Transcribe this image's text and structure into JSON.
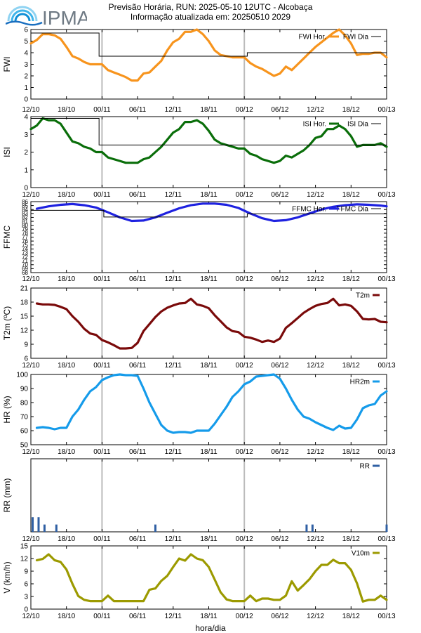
{
  "header": {
    "logo_text": "IPMA",
    "title": "Previsão Horária, RUN: 2025-05-10 12UTC - Alcobaça",
    "subtitle": "Informação atualizada em: 20250510 2029"
  },
  "xlabel": "hora/dia",
  "time_labels": [
    "12/10",
    "18/10",
    "00/11",
    "06/11",
    "12/11",
    "18/11",
    "00/12",
    "06/12",
    "12/12",
    "18/12",
    "00/13"
  ],
  "colors": {
    "fwi": "#f7941d",
    "isi": "#0a6e0a",
    "ffmc": "#1f22e0",
    "t2m": "#7a0a0a",
    "hr": "#159bea",
    "rr": "#2f5fa3",
    "v10m": "#9c9a00",
    "daily": "#000000",
    "midnight": "#bbbbbb"
  },
  "chart_data": [
    {
      "id": "fwi",
      "type": "line",
      "ylabel": "FWI",
      "ylim": [
        0,
        6
      ],
      "yticks": [
        "0",
        "1",
        "2",
        "3",
        "4",
        "5",
        "6"
      ],
      "legend": [
        "FWI Hor.",
        "FWI Dia"
      ],
      "legend_position": "top-right",
      "x": [
        0,
        1,
        2,
        3,
        4,
        5,
        6,
        7,
        8,
        9,
        10,
        11,
        12,
        13,
        14,
        15,
        16,
        17,
        18,
        19,
        20,
        21,
        22,
        23,
        24,
        25,
        26,
        27,
        28,
        29,
        30,
        31,
        32,
        33,
        34,
        35,
        36,
        37,
        38,
        39,
        40,
        41,
        42,
        43,
        44,
        45,
        46,
        47,
        48,
        49,
        50,
        51,
        52,
        53,
        54,
        55,
        56,
        57,
        58,
        59,
        60
      ],
      "series": [
        {
          "values": [
            4.8,
            5.1,
            5.6,
            5.6,
            5.5,
            5.2,
            4.5,
            3.7,
            3.5,
            3.2,
            3.0,
            3.0,
            3.0,
            2.5,
            2.3,
            2.1,
            1.9,
            1.6,
            1.6,
            2.2,
            2.3,
            2.8,
            3.3,
            4.2,
            4.9,
            5.2,
            5.8,
            5.8,
            6.0,
            5.6,
            5.0,
            4.2,
            3.8,
            3.7,
            3.6,
            3.6,
            3.6,
            3.1,
            2.8,
            2.6,
            2.3,
            2.0,
            2.2,
            2.8,
            2.5,
            3.0,
            3.5,
            4.0,
            4.5,
            4.9,
            5.3,
            5.7,
            6.0,
            5.5,
            4.8,
            3.8,
            3.9,
            3.9,
            4.0,
            4.0,
            3.6
          ]
        },
        {
          "daily": true,
          "segments": [
            [
              0,
              11.5,
              5.7
            ],
            [
              11.5,
              36.5,
              3.7
            ],
            [
              36.5,
              60,
              4.0
            ]
          ]
        }
      ]
    },
    {
      "id": "isi",
      "type": "line",
      "ylabel": "ISI",
      "ylim": [
        0,
        4
      ],
      "yticks": [
        "0",
        "1",
        "2",
        "3",
        "4"
      ],
      "legend": [
        "ISI Hor.",
        "ISI Dia"
      ],
      "legend_position": "top-right",
      "x": [
        0,
        1,
        2,
        3,
        4,
        5,
        6,
        7,
        8,
        9,
        10,
        11,
        12,
        13,
        14,
        15,
        16,
        17,
        18,
        19,
        20,
        21,
        22,
        23,
        24,
        25,
        26,
        27,
        28,
        29,
        30,
        31,
        32,
        33,
        34,
        35,
        36,
        37,
        38,
        39,
        40,
        41,
        42,
        43,
        44,
        45,
        46,
        47,
        48,
        49,
        50,
        51,
        52,
        53,
        54,
        55,
        56,
        57,
        58,
        59,
        60
      ],
      "series": [
        {
          "values": [
            3.3,
            3.5,
            3.9,
            3.8,
            3.8,
            3.6,
            3.1,
            2.6,
            2.5,
            2.3,
            2.2,
            2.0,
            2.0,
            1.7,
            1.6,
            1.5,
            1.4,
            1.4,
            1.4,
            1.6,
            1.7,
            2.0,
            2.3,
            2.7,
            3.1,
            3.3,
            3.7,
            3.7,
            3.8,
            3.6,
            3.2,
            2.7,
            2.5,
            2.4,
            2.3,
            2.2,
            2.2,
            1.9,
            1.8,
            1.6,
            1.5,
            1.4,
            1.5,
            1.8,
            1.7,
            1.9,
            2.1,
            2.4,
            2.8,
            2.9,
            3.3,
            3.3,
            3.5,
            3.3,
            2.9,
            2.3,
            2.4,
            2.4,
            2.4,
            2.5,
            2.3
          ]
        },
        {
          "daily": true,
          "segments": [
            [
              0,
              11.5,
              3.9
            ],
            [
              11.5,
              60,
              2.4
            ]
          ]
        }
      ]
    },
    {
      "id": "ffmc",
      "type": "line",
      "ylabel": "FFMC",
      "ylim": [
        68,
        86
      ],
      "yticks": [
        "68",
        "69",
        "70",
        "71",
        "72",
        "73",
        "74",
        "75",
        "76",
        "77",
        "78",
        "79",
        "80",
        "81",
        "82",
        "83",
        "84",
        "85",
        "86"
      ],
      "legend": [
        "FFMC Hor.",
        "FFMC Dia"
      ],
      "legend_position": "top-right",
      "x": [
        1,
        3,
        5,
        7,
        9,
        11,
        13,
        15,
        17,
        19,
        21,
        23,
        25,
        27,
        29,
        31,
        33,
        35,
        37,
        39,
        41,
        43,
        45,
        47,
        49,
        51,
        53,
        55,
        57,
        59,
        60
      ],
      "series": [
        {
          "values": [
            84.2,
            84.8,
            85.2,
            85.4,
            85.1,
            84.5,
            83.3,
            82.0,
            81.1,
            81.2,
            82.0,
            83.2,
            84.3,
            85.1,
            85.5,
            85.5,
            85.2,
            84.4,
            83.0,
            81.8,
            81.1,
            81.3,
            82.0,
            83.0,
            84.0,
            84.7,
            85.1,
            85.3,
            85.2,
            85.0,
            84.8
          ]
        },
        {
          "daily": true,
          "segments": [
            [
              0,
              12.3,
              83.8
            ],
            [
              12.3,
              36.5,
              82.1
            ],
            [
              36.5,
              60,
              82.9
            ]
          ]
        }
      ]
    },
    {
      "id": "t2m",
      "type": "line",
      "ylabel": "T2m (ºC)",
      "ylim": [
        6,
        21
      ],
      "yticks": [
        "6",
        "9",
        "12",
        "15",
        "18",
        "21"
      ],
      "legend": [
        "T2m"
      ],
      "legend_position": "top-right",
      "x": [
        1,
        2,
        3,
        4,
        5,
        6,
        7,
        8,
        9,
        10,
        11,
        12,
        13,
        14,
        15,
        16,
        17,
        18,
        19,
        20,
        21,
        22,
        23,
        24,
        25,
        26,
        27,
        28,
        29,
        30,
        31,
        32,
        33,
        34,
        35,
        36,
        37,
        38,
        39,
        40,
        41,
        42,
        43,
        44,
        45,
        46,
        47,
        48,
        49,
        50,
        51,
        52,
        53,
        54,
        55,
        56,
        57,
        58,
        59,
        60
      ],
      "series": [
        {
          "values": [
            17.7,
            17.5,
            17.5,
            17.4,
            17.0,
            16.5,
            15.0,
            13.8,
            12.3,
            11.3,
            11.0,
            9.9,
            9.4,
            8.8,
            8.1,
            8.1,
            8.2,
            9.3,
            11.8,
            13.3,
            14.8,
            16.0,
            16.8,
            17.3,
            17.7,
            17.8,
            18.7,
            17.5,
            17.2,
            16.7,
            15.2,
            13.9,
            12.6,
            11.8,
            11.6,
            10.6,
            10.4,
            10.0,
            9.5,
            9.8,
            9.5,
            10.2,
            12.5,
            13.5,
            14.6,
            15.7,
            16.5,
            17.2,
            17.6,
            17.8,
            18.7,
            17.3,
            17.5,
            17.2,
            16.0,
            14.4,
            14.3,
            14.4,
            13.8,
            13.7
          ]
        }
      ]
    },
    {
      "id": "hr",
      "type": "line",
      "ylabel": "HR (%)",
      "ylim": [
        50,
        100
      ],
      "yticks": [
        "50",
        "60",
        "70",
        "80",
        "90",
        "100"
      ],
      "legend": [
        "HR2m"
      ],
      "legend_position": "top-right",
      "x": [
        1,
        2,
        3,
        4,
        5,
        6,
        7,
        8,
        9,
        10,
        11,
        12,
        13,
        14,
        15,
        16,
        17,
        18,
        19,
        20,
        21,
        22,
        23,
        24,
        25,
        26,
        27,
        28,
        29,
        30,
        31,
        32,
        33,
        34,
        35,
        36,
        37,
        38,
        39,
        40,
        41,
        42,
        43,
        44,
        45,
        46,
        47,
        48,
        49,
        50,
        51,
        52,
        53,
        54,
        55,
        56,
        57,
        58,
        59,
        60
      ],
      "series": [
        {
          "values": [
            62,
            62.5,
            62,
            61,
            62,
            62,
            70,
            75,
            82,
            88,
            91,
            96,
            98,
            99.5,
            100,
            99.5,
            99.5,
            99,
            90,
            80,
            72,
            64,
            60,
            58.5,
            59,
            59,
            58.5,
            60,
            60,
            60,
            65,
            71,
            77,
            84,
            88,
            93,
            95,
            98.5,
            99,
            99.5,
            100,
            97,
            90,
            82,
            75,
            70,
            68.5,
            66,
            64,
            62,
            60.5,
            63.5,
            61.5,
            62,
            68,
            76,
            78,
            79,
            85,
            88
          ]
        }
      ]
    },
    {
      "id": "rr",
      "type": "bar",
      "ylabel": "RR (mm)",
      "ylim": [
        0,
        1
      ],
      "yticks": [],
      "legend": [
        "RR"
      ],
      "legend_position": "top-right",
      "x": [
        0.3,
        1.3,
        2.3,
        4.3,
        21.0,
        46.5,
        47.5,
        60.0
      ],
      "series": [
        {
          "values": [
            0.2,
            0.2,
            0.1,
            0.1,
            0.1,
            0.1,
            0.1,
            0.1
          ]
        }
      ]
    },
    {
      "id": "v10m",
      "type": "line",
      "ylabel": "V (km/h)",
      "ylim": [
        0,
        15
      ],
      "yticks": [
        "0",
        "3",
        "6",
        "9",
        "12",
        "15"
      ],
      "legend": [
        "V10m"
      ],
      "legend_position": "top-right",
      "x": [
        1,
        2,
        3,
        4,
        5,
        6,
        7,
        8,
        9,
        10,
        11,
        12,
        13,
        14,
        15,
        16,
        17,
        18,
        19,
        20,
        21,
        22,
        23,
        24,
        25,
        26,
        27,
        28,
        29,
        30,
        31,
        32,
        33,
        34,
        35,
        36,
        37,
        38,
        39,
        40,
        41,
        42,
        43,
        44,
        45,
        46,
        47,
        48,
        49,
        50,
        51,
        52,
        53,
        54,
        55,
        56,
        57,
        58,
        59,
        60
      ],
      "series": [
        {
          "values": [
            11.6,
            11.9,
            13.0,
            11.6,
            11.2,
            9.4,
            6.0,
            3.1,
            2.2,
            1.9,
            1.9,
            1.9,
            3.2,
            1.9,
            1.9,
            1.9,
            1.9,
            1.9,
            1.9,
            4.6,
            4.9,
            6.7,
            7.9,
            10.0,
            12.0,
            11.5,
            13.0,
            12.0,
            11.6,
            10.0,
            7.0,
            4.0,
            2.3,
            1.9,
            1.9,
            1.9,
            3.2,
            1.9,
            2.5,
            2.5,
            2.2,
            2.2,
            3.2,
            6.6,
            4.4,
            5.7,
            7.1,
            9.0,
            10.5,
            10.5,
            11.7,
            10.9,
            10.9,
            9.3,
            6.1,
            1.8,
            2.2,
            2.2,
            3.2,
            2.2
          ]
        }
      ]
    }
  ]
}
